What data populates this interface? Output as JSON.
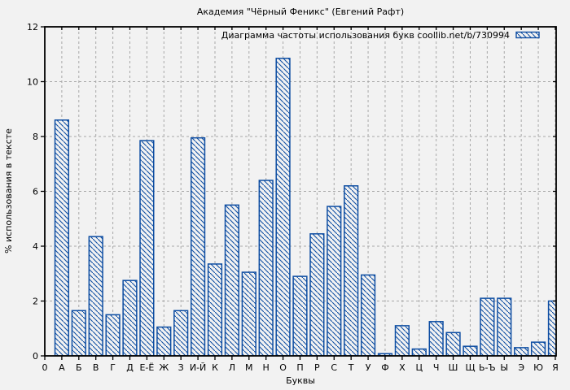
{
  "chart_data": {
    "type": "bar",
    "title": "Академия \"Чёрный Феникс\" (Евгений Рафт)",
    "legend_label": "Диаграмма частоты использования букв coollib.net/b/730994",
    "legend_position": "top-right-inside",
    "xlabel": "Буквы",
    "ylabel": "% использования в тексте",
    "origin_tick_label": "0",
    "categories": [
      "А",
      "Б",
      "В",
      "Г",
      "Д",
      "Е-Ё",
      "Ж",
      "З",
      "И-Й",
      "К",
      "Л",
      "М",
      "Н",
      "О",
      "П",
      "Р",
      "С",
      "Т",
      "У",
      "Ф",
      "Х",
      "Ц",
      "Ч",
      "Ш",
      "Щ",
      "Ь-Ъ",
      "Ы",
      "Э",
      "Ю",
      "Я"
    ],
    "values": [
      8.6,
      1.65,
      4.35,
      1.5,
      2.75,
      7.85,
      1.05,
      1.65,
      7.95,
      3.35,
      5.5,
      3.05,
      6.4,
      10.85,
      2.9,
      4.45,
      5.45,
      6.2,
      2.95,
      0.08,
      1.1,
      0.25,
      1.25,
      0.85,
      0.35,
      2.1,
      2.1,
      0.3,
      0.5,
      2.0
    ],
    "ylim": [
      0,
      12
    ],
    "yticks": [
      0,
      2,
      4,
      6,
      8,
      10,
      12
    ],
    "grid": true,
    "bar_fill_style": "diagonal-hatch",
    "colors": {
      "bar": "#0d4da2",
      "background": "#f2f2f2",
      "grid": "#a8a8a8",
      "axis": "#000000",
      "text": "#000000"
    }
  }
}
